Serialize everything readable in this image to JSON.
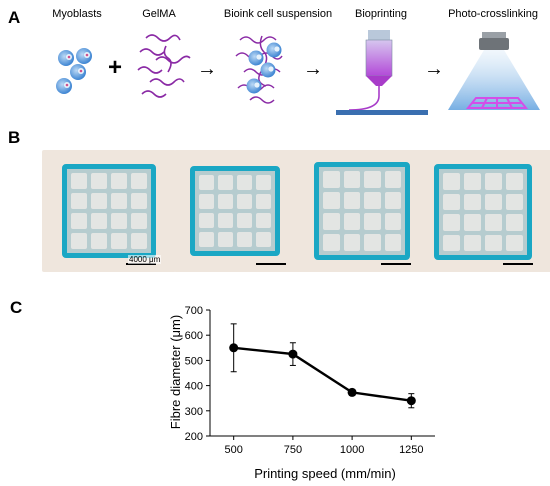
{
  "panel_a": {
    "letter": "A",
    "steps": [
      "Myoblasts",
      "GelMA",
      "Bioink cell suspension",
      "Bioprinting",
      "Photo-crosslinking"
    ],
    "plus": "+",
    "arrow": "→"
  },
  "panel_b": {
    "letter": "B",
    "scale_label": "4000 μm",
    "photos": 4
  },
  "panel_c": {
    "letter": "C"
  },
  "colors": {
    "cyan_gel": "#1aa7c4",
    "purple": "#8a2aa5",
    "cell_blue": "#4a8fd6"
  },
  "chart_data": {
    "type": "line",
    "x": [
      500,
      750,
      1000,
      1250
    ],
    "values": [
      550,
      525,
      373,
      340
    ],
    "errors": [
      95,
      45,
      12,
      28
    ],
    "xlabel": "Printing speed (mm/min)",
    "ylabel": "Fibre diameter (μm)",
    "xlim": [
      400,
      1350
    ],
    "ylim": [
      200,
      700
    ],
    "xticks": [
      500,
      750,
      1000,
      1250
    ],
    "yticks": [
      200,
      300,
      400,
      500,
      600,
      700
    ],
    "grid": false
  }
}
